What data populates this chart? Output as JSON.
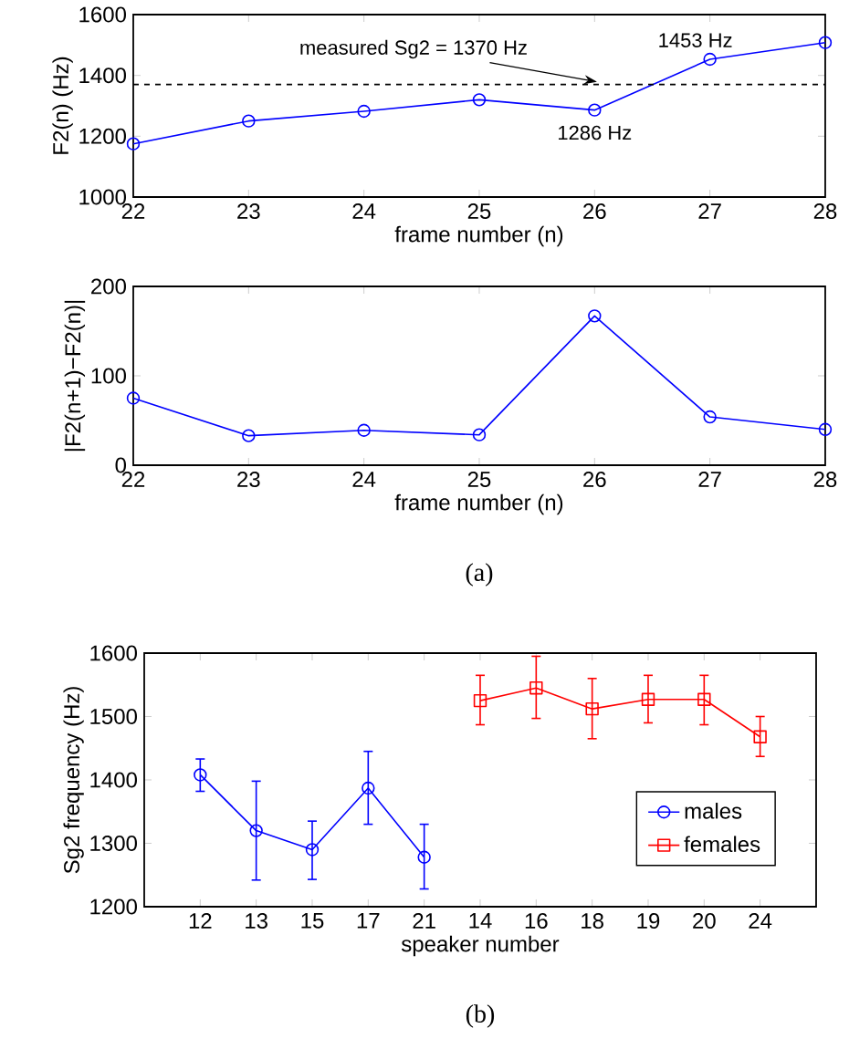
{
  "chart_data": [
    {
      "type": "line",
      "xlabel": "frame number (n)",
      "ylabel": "F2(n) (Hz)",
      "x": [
        22,
        23,
        24,
        25,
        26,
        27,
        28
      ],
      "series": [
        {
          "color": "#0000ff",
          "values": [
            1175,
            1250,
            1282,
            1320,
            1286,
            1453,
            1508
          ]
        }
      ],
      "xlim": [
        22,
        28
      ],
      "xticks": [
        22,
        23,
        24,
        25,
        26,
        27,
        28
      ],
      "ylim": [
        1000,
        1600
      ],
      "yticks": [
        1000,
        1200,
        1400,
        1600
      ],
      "ref_lines": [
        {
          "axis": "y",
          "value": 1370,
          "label": "measured Sg2 = 1370 Hz",
          "color": "#000000",
          "line_style": "dashed"
        }
      ],
      "annotations": [
        {
          "text": "1453 Hz",
          "x": 27,
          "y": 1453
        },
        {
          "text": "1286 Hz",
          "x": 26,
          "y": 1286
        }
      ],
      "marker": "circle",
      "line_style": "solid",
      "grid": false,
      "legend": false
    },
    {
      "type": "line",
      "xlabel": "frame number (n)",
      "ylabel": "|F2(n+1)−F2(n)|",
      "x": [
        22,
        23,
        24,
        25,
        26,
        27,
        28
      ],
      "series": [
        {
          "color": "#0000ff",
          "values": [
            75,
            33,
            39,
            34,
            167,
            54,
            40
          ]
        }
      ],
      "xlim": [
        22,
        28
      ],
      "xticks": [
        22,
        23,
        24,
        25,
        26,
        27,
        28
      ],
      "ylim": [
        0,
        200
      ],
      "yticks": [
        0,
        100,
        200
      ],
      "annotations": [
        "(a)"
      ],
      "marker": "circle",
      "line_style": "solid",
      "grid": false,
      "legend": false
    },
    {
      "type": "line",
      "xlabel": "speaker number",
      "ylabel": "Sg2 frequency (Hz)",
      "categories": [
        "12",
        "13",
        "15",
        "17",
        "21",
        "14",
        "16",
        "18",
        "19",
        "20",
        "24"
      ],
      "series": [
        {
          "name": "males",
          "color": "#0000ff",
          "marker": "circle",
          "values": [
            1408,
            1320,
            1290,
            1387,
            1278,
            null,
            null,
            null,
            null,
            null,
            null
          ],
          "errors": [
            [
              1382,
              1433
            ],
            [
              1242,
              1398
            ],
            [
              1243,
              1335
            ],
            [
              1330,
              1445
            ],
            [
              1228,
              1330
            ],
            null,
            null,
            null,
            null,
            null,
            null
          ]
        },
        {
          "name": "females",
          "color": "#ff0000",
          "marker": "square",
          "values": [
            null,
            null,
            null,
            null,
            null,
            1525,
            1545,
            1512,
            1527,
            1527,
            1468
          ],
          "errors": [
            null,
            null,
            null,
            null,
            null,
            [
              1487,
              1565
            ],
            [
              1497,
              1595
            ],
            [
              1465,
              1560
            ],
            [
              1490,
              1565
            ],
            [
              1487,
              1565
            ],
            [
              1437,
              1500
            ]
          ]
        }
      ],
      "ylim": [
        1200,
        1600
      ],
      "yticks": [
        1200,
        1300,
        1400,
        1500,
        1600
      ],
      "annotations": [
        "(b)"
      ],
      "line_style": "solid",
      "grid": false,
      "legend": "bottom right"
    }
  ]
}
